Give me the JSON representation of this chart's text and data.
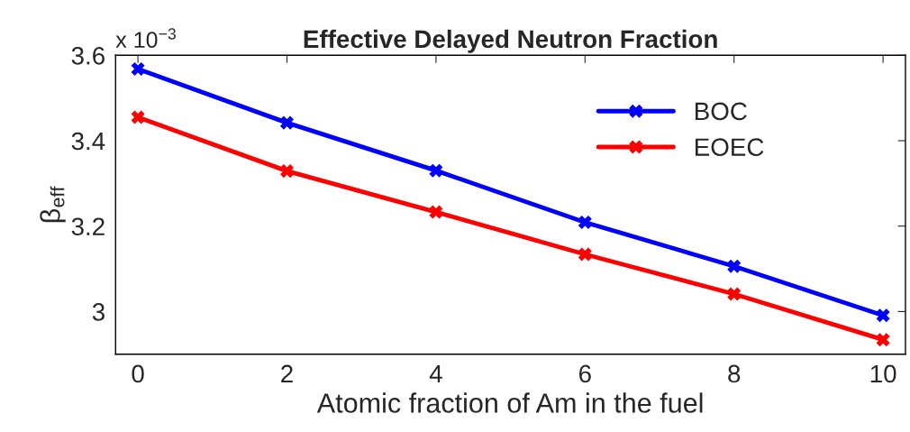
{
  "chart_data": {
    "type": "line",
    "title": "Effective Delayed Neutron Fraction",
    "xlabel": "Atomic fraction of Am in the fuel",
    "ylabel": "β$_{eff}$",
    "annotations": [
      "x 10$^{−3}$"
    ],
    "x": [
      0,
      2,
      4,
      6,
      8,
      10
    ],
    "series": [
      {
        "name": "BOC",
        "color": "#0000ff",
        "values": [
          3.568,
          3.442,
          3.33,
          3.209,
          3.106,
          2.991
        ]
      },
      {
        "name": "EOEC",
        "color": "#ff0000",
        "values": [
          3.455,
          3.329,
          3.233,
          3.134,
          3.041,
          2.934
        ]
      }
    ],
    "xlim": [
      -0.3,
      10.3
    ],
    "xticks": [
      0,
      2,
      4,
      6,
      8,
      10
    ],
    "ylim": [
      2.9,
      3.6
    ],
    "yticks": [
      3,
      3.2,
      3.4,
      3.6
    ],
    "marker": "cross",
    "line_style": "solid",
    "grid": false,
    "legend": "top right"
  }
}
